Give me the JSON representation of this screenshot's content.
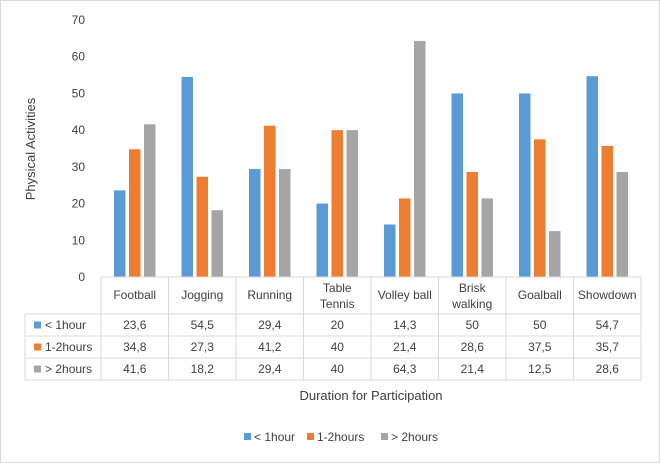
{
  "chart_data": {
    "type": "bar",
    "title": "",
    "xlabel": "Duration for Participation",
    "ylabel": "Physical Activities",
    "ylim": [
      0,
      70
    ],
    "yticks": [
      0,
      10,
      20,
      30,
      40,
      50,
      60,
      70
    ],
    "grid": false,
    "legend_position": "bottom",
    "categories": [
      [
        "Football"
      ],
      [
        "Jogging"
      ],
      [
        "Running"
      ],
      [
        "Table",
        "Tennis"
      ],
      [
        "Volley ball"
      ],
      [
        "Brisk",
        "walking"
      ],
      [
        "Goalball"
      ],
      [
        "Showdown"
      ]
    ],
    "series": [
      {
        "name": "< 1hour",
        "color": "#5b9bd5",
        "values": [
          23.6,
          54.5,
          29.4,
          20,
          14.3,
          50,
          50,
          54.7
        ],
        "labels": [
          "23,6",
          "54,5",
          "29,4",
          "20",
          "14,3",
          "50",
          "50",
          "54,7"
        ]
      },
      {
        "name": "1-2hours",
        "color": "#ed7d31",
        "values": [
          34.8,
          27.3,
          41.2,
          40,
          21.4,
          28.6,
          37.5,
          35.7
        ],
        "labels": [
          "34,8",
          "27,3",
          "41,2",
          "40",
          "21,4",
          "28,6",
          "37,5",
          "35,7"
        ]
      },
      {
        "name": "> 2hours",
        "color": "#a5a5a5",
        "values": [
          41.6,
          18.2,
          29.4,
          40,
          64.3,
          21.4,
          12.5,
          28.6
        ],
        "labels": [
          "41,6",
          "18,2",
          "29,4",
          "40",
          "64,3",
          "21,4",
          "12,5",
          "28,6"
        ]
      }
    ]
  }
}
